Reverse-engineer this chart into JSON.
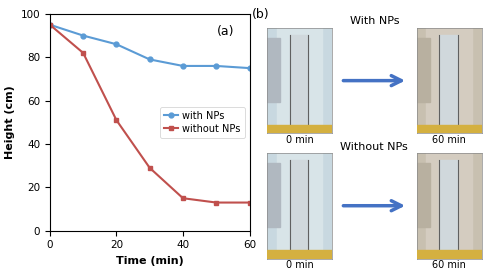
{
  "with_nps_x": [
    0,
    10,
    20,
    30,
    40,
    50,
    60
  ],
  "with_nps_y": [
    95,
    90,
    86,
    79,
    76,
    76,
    75
  ],
  "without_nps_x": [
    0,
    10,
    20,
    30,
    40,
    50,
    60
  ],
  "without_nps_y": [
    95,
    82,
    51,
    29,
    15,
    13,
    13
  ],
  "xlabel": "Time (min)",
  "ylabel": "Height (cm)",
  "label_with": "with NPs",
  "label_without": "without NPs",
  "color_with": "#5B9BD5",
  "color_without": "#C0504D",
  "xlim": [
    0,
    60
  ],
  "ylim": [
    0,
    100
  ],
  "xticks": [
    0,
    20,
    40,
    60
  ],
  "yticks": [
    0,
    20,
    40,
    60,
    80,
    100
  ],
  "annotation_a": "(a)",
  "annotation_b": "(b)",
  "title_with_nps": "With NPs",
  "title_without_nps": "Without NPs",
  "label_0min": "0 min",
  "label_60min": "60 min",
  "arrow_color": "#4472C4",
  "bg_color": "#ffffff",
  "photo_bg_light": "#c8d4dc",
  "photo_bg_warm": "#d4ccc0",
  "tube_color": "#e8e8e8",
  "tube_dark": "#888888"
}
